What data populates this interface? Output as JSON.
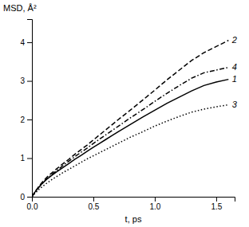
{
  "chart_data": {
    "type": "line",
    "x_label": "t, ps",
    "y_label": "MSD, Å²",
    "xlim": [
      0,
      1.65
    ],
    "ylim": [
      0,
      4.6
    ],
    "xticks": [
      {
        "value": 0,
        "label": "0.0"
      },
      0.5,
      {
        "value": 1,
        "label": "1.0"
      },
      1.5
    ],
    "yticks": [
      0,
      1,
      2,
      3,
      4
    ],
    "grid": false,
    "x": [
      0,
      0.02,
      0.05,
      0.08,
      0.12,
      0.16,
      0.2,
      0.25,
      0.3,
      0.35,
      0.4,
      0.45,
      0.5,
      0.55,
      0.6,
      0.65,
      0.7,
      0.8,
      0.9,
      1.0,
      1.1,
      1.2,
      1.3,
      1.4,
      1.5,
      1.6
    ],
    "series": [
      {
        "color": "#000000",
        "line_style": "dotted",
        "values": [
          0,
          0.07,
          0.17,
          0.25,
          0.35,
          0.44,
          0.52,
          0.62,
          0.71,
          0.8,
          0.89,
          0.98,
          1.06,
          1.14,
          1.22,
          1.3,
          1.38,
          1.54,
          1.68,
          1.83,
          1.96,
          2.08,
          2.19,
          2.27,
          2.33,
          2.38
        ]
      },
      {
        "color": "#000000",
        "line_style": "solid",
        "values": [
          0,
          0.1,
          0.22,
          0.33,
          0.45,
          0.55,
          0.64,
          0.75,
          0.86,
          0.97,
          1.07,
          1.18,
          1.28,
          1.38,
          1.48,
          1.58,
          1.68,
          1.87,
          2.06,
          2.24,
          2.42,
          2.58,
          2.74,
          2.88,
          2.97,
          3.04
        ]
      },
      {
        "color": "#000000",
        "line_style": "dashdot",
        "values": [
          0,
          0.1,
          0.22,
          0.33,
          0.46,
          0.57,
          0.67,
          0.8,
          0.92,
          1.04,
          1.15,
          1.26,
          1.38,
          1.49,
          1.6,
          1.71,
          1.82,
          2.04,
          2.25,
          2.47,
          2.68,
          2.88,
          3.07,
          3.21,
          3.28,
          3.35
        ]
      },
      {
        "color": "#000000",
        "line_style": "dashed",
        "values": [
          0,
          0.1,
          0.24,
          0.36,
          0.5,
          0.61,
          0.72,
          0.85,
          0.97,
          1.1,
          1.22,
          1.34,
          1.47,
          1.6,
          1.73,
          1.86,
          1.99,
          2.24,
          2.5,
          2.76,
          3.03,
          3.28,
          3.53,
          3.73,
          3.89,
          4.05
        ]
      }
    ],
    "annotations": [
      {
        "text": "1",
        "x": 1.61,
        "y": 3.04
      },
      {
        "text": "2",
        "x": 1.61,
        "y": 4.05
      },
      {
        "text": "3",
        "x": 1.61,
        "y": 2.38
      },
      {
        "text": "4",
        "x": 1.61,
        "y": 3.35
      }
    ]
  }
}
